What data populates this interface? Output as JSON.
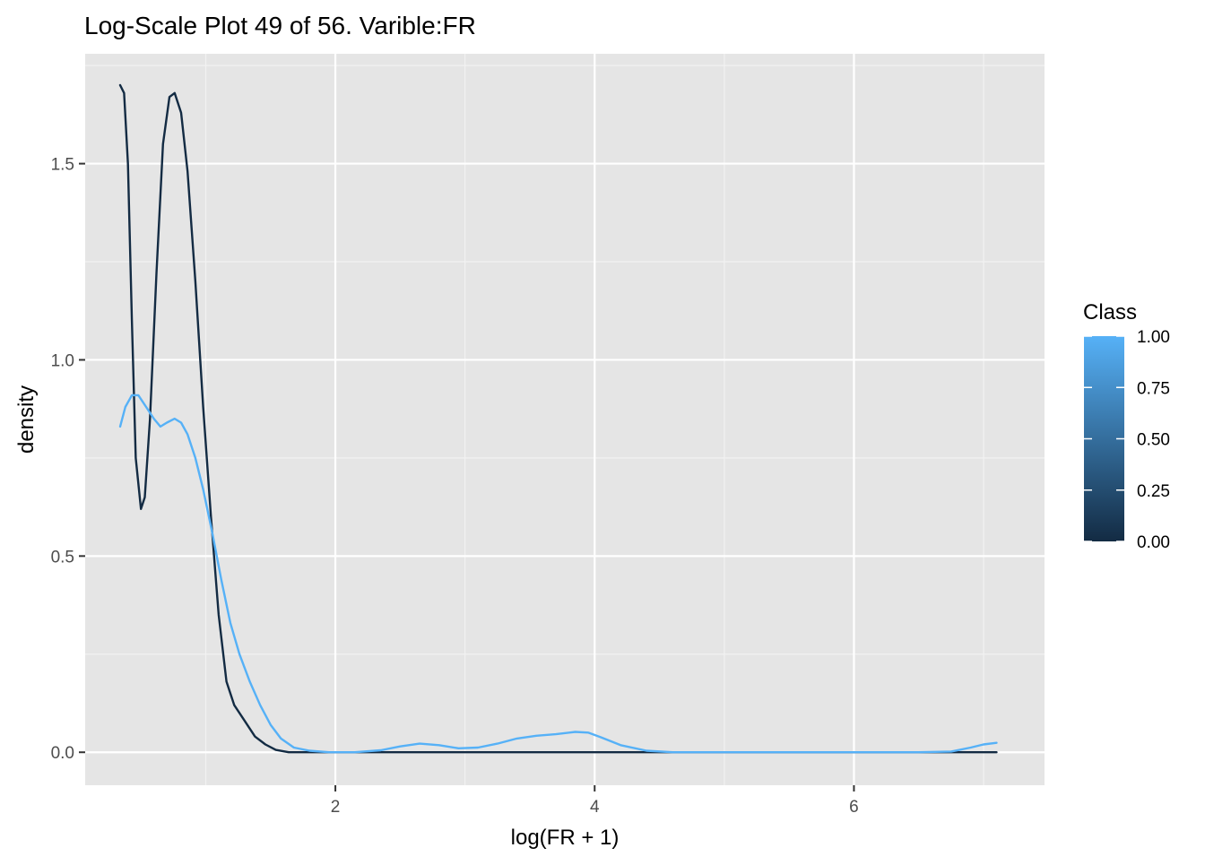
{
  "chart_data": {
    "type": "line",
    "title": "Log-Scale Plot 49 of 56. Varible:FR",
    "xlabel": "log(FR + 1)",
    "ylabel": "density",
    "xlim": [
      0.07,
      7.47
    ],
    "ylim": [
      -0.084,
      1.78
    ],
    "grid": true,
    "x_ticks": [
      2,
      4,
      6
    ],
    "x_tick_labels": [
      "2",
      "4",
      "6"
    ],
    "y_ticks": [
      0.0,
      0.5,
      1.0,
      1.5
    ],
    "y_tick_labels": [
      "0.0",
      "0.5",
      "1.0",
      "1.5"
    ],
    "legend": {
      "title": "Class",
      "type": "colorbar",
      "placement": "right",
      "labels": [
        "1.00",
        "0.75",
        "0.50",
        "0.25",
        "0.00"
      ],
      "low_color": "#132B43",
      "high_color": "#56B1F7"
    },
    "series": [
      {
        "class_value": 0,
        "color": "#132B43",
        "points": [
          [
            0.34,
            1.7
          ],
          [
            0.37,
            1.68
          ],
          [
            0.4,
            1.5
          ],
          [
            0.43,
            1.1
          ],
          [
            0.46,
            0.75
          ],
          [
            0.5,
            0.62
          ],
          [
            0.53,
            0.65
          ],
          [
            0.57,
            0.85
          ],
          [
            0.62,
            1.22
          ],
          [
            0.67,
            1.55
          ],
          [
            0.72,
            1.67
          ],
          [
            0.76,
            1.68
          ],
          [
            0.81,
            1.63
          ],
          [
            0.86,
            1.48
          ],
          [
            0.92,
            1.2
          ],
          [
            0.98,
            0.88
          ],
          [
            1.04,
            0.6
          ],
          [
            1.1,
            0.35
          ],
          [
            1.16,
            0.18
          ],
          [
            1.22,
            0.12
          ],
          [
            1.3,
            0.08
          ],
          [
            1.38,
            0.04
          ],
          [
            1.46,
            0.02
          ],
          [
            1.54,
            0.006
          ],
          [
            1.64,
            0.0
          ],
          [
            2.0,
            0.0
          ],
          [
            3.0,
            0.0
          ],
          [
            4.0,
            0.0
          ],
          [
            5.0,
            0.0
          ],
          [
            6.0,
            0.0
          ],
          [
            7.1,
            0.0
          ]
        ]
      },
      {
        "class_value": 1,
        "color": "#56B1F7",
        "points": [
          [
            0.34,
            0.83
          ],
          [
            0.38,
            0.88
          ],
          [
            0.43,
            0.91
          ],
          [
            0.48,
            0.91
          ],
          [
            0.54,
            0.88
          ],
          [
            0.6,
            0.85
          ],
          [
            0.65,
            0.83
          ],
          [
            0.7,
            0.84
          ],
          [
            0.76,
            0.85
          ],
          [
            0.81,
            0.84
          ],
          [
            0.86,
            0.81
          ],
          [
            0.92,
            0.75
          ],
          [
            0.98,
            0.67
          ],
          [
            1.05,
            0.56
          ],
          [
            1.12,
            0.44
          ],
          [
            1.19,
            0.33
          ],
          [
            1.26,
            0.25
          ],
          [
            1.34,
            0.18
          ],
          [
            1.42,
            0.12
          ],
          [
            1.5,
            0.07
          ],
          [
            1.58,
            0.035
          ],
          [
            1.68,
            0.012
          ],
          [
            1.8,
            0.004
          ],
          [
            1.95,
            0.0
          ],
          [
            2.15,
            0.0
          ],
          [
            2.35,
            0.005
          ],
          [
            2.5,
            0.015
          ],
          [
            2.65,
            0.022
          ],
          [
            2.8,
            0.018
          ],
          [
            2.95,
            0.01
          ],
          [
            3.1,
            0.012
          ],
          [
            3.25,
            0.022
          ],
          [
            3.4,
            0.035
          ],
          [
            3.55,
            0.042
          ],
          [
            3.7,
            0.046
          ],
          [
            3.85,
            0.052
          ],
          [
            3.95,
            0.05
          ],
          [
            4.05,
            0.038
          ],
          [
            4.2,
            0.018
          ],
          [
            4.4,
            0.004
          ],
          [
            4.6,
            0.0
          ],
          [
            5.0,
            0.0
          ],
          [
            5.5,
            0.0
          ],
          [
            6.0,
            0.0
          ],
          [
            6.5,
            0.0
          ],
          [
            6.75,
            0.002
          ],
          [
            6.9,
            0.012
          ],
          [
            7.0,
            0.02
          ],
          [
            7.1,
            0.024
          ]
        ]
      }
    ]
  }
}
